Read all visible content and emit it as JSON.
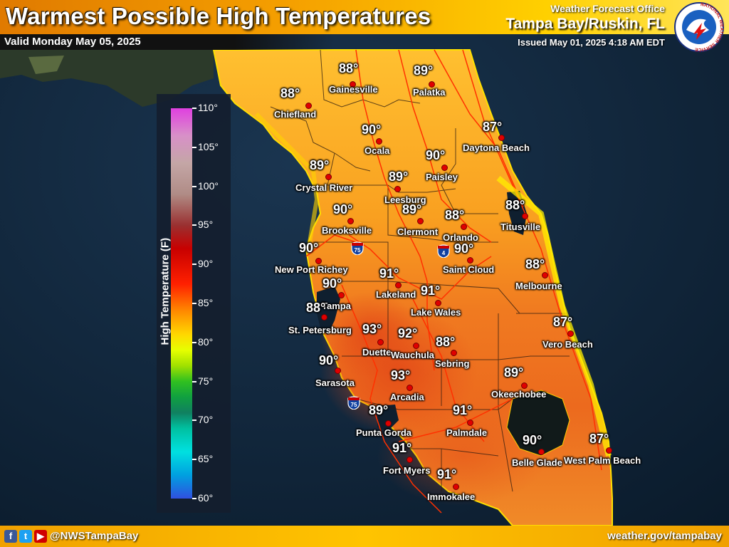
{
  "header": {
    "title": "Warmest Possible High Temperatures",
    "valid": "Valid Monday May 05, 2025",
    "office_line": "Weather Forecast Office",
    "office_name": "Tampa Bay/Ruskin, FL",
    "issued": "Issued May 01, 2025 4:18 AM EDT",
    "logo_icon": "nws-logo-icon"
  },
  "legend": {
    "title": "High Temperature (F)",
    "ticks": [
      "110°",
      "105°",
      "100°",
      "95°",
      "90°",
      "85°",
      "80°",
      "75°",
      "70°",
      "65°",
      "60°"
    ]
  },
  "highways": [
    "75",
    "4",
    "75"
  ],
  "cities": [
    {
      "name": "Gainesville",
      "temp": "88°"
    },
    {
      "name": "Palatka",
      "temp": "89°"
    },
    {
      "name": "Chiefland",
      "temp": "88°"
    },
    {
      "name": "Ocala",
      "temp": "90°"
    },
    {
      "name": "Daytona Beach",
      "temp": "87°"
    },
    {
      "name": "Paisley",
      "temp": "90°"
    },
    {
      "name": "Crystal River",
      "temp": "89°"
    },
    {
      "name": "Leesburg",
      "temp": "89°"
    },
    {
      "name": "Brooksville",
      "temp": "90°"
    },
    {
      "name": "Clermont",
      "temp": "89°"
    },
    {
      "name": "Orlando",
      "temp": "88°"
    },
    {
      "name": "Titusville",
      "temp": "88°"
    },
    {
      "name": "New Port Richey",
      "temp": "90°"
    },
    {
      "name": "Saint Cloud",
      "temp": "90°"
    },
    {
      "name": "Lakeland",
      "temp": "91°"
    },
    {
      "name": "Melbourne",
      "temp": "88°"
    },
    {
      "name": "Tampa",
      "temp": "90°"
    },
    {
      "name": "Lake Wales",
      "temp": "91°"
    },
    {
      "name": "St. Petersburg",
      "temp": "88°"
    },
    {
      "name": "Duette",
      "temp": "93°"
    },
    {
      "name": "Wauchula",
      "temp": "92°"
    },
    {
      "name": "Vero Beach",
      "temp": "87°"
    },
    {
      "name": "Sebring",
      "temp": "88°"
    },
    {
      "name": "Sarasota",
      "temp": "90°"
    },
    {
      "name": "Arcadia",
      "temp": "93°"
    },
    {
      "name": "Okeechobee",
      "temp": "89°"
    },
    {
      "name": "Punta Gorda",
      "temp": "89°"
    },
    {
      "name": "Palmdale",
      "temp": "91°"
    },
    {
      "name": "Fort Myers",
      "temp": "91°"
    },
    {
      "name": "Belle Glade",
      "temp": "90°"
    },
    {
      "name": "West Palm Beach",
      "temp": "87°"
    },
    {
      "name": "Immokalee",
      "temp": "91°"
    }
  ],
  "footer": {
    "social_icons": [
      "facebook-icon",
      "twitter-icon",
      "youtube-icon"
    ],
    "handle": "@NWSTampaBay",
    "website": "weather.gov/tampabay"
  },
  "colors": {
    "header_orange": "#f5a000",
    "land_hot": "#f07020",
    "land_warm": "#ffb020",
    "water": "#0d2235"
  }
}
